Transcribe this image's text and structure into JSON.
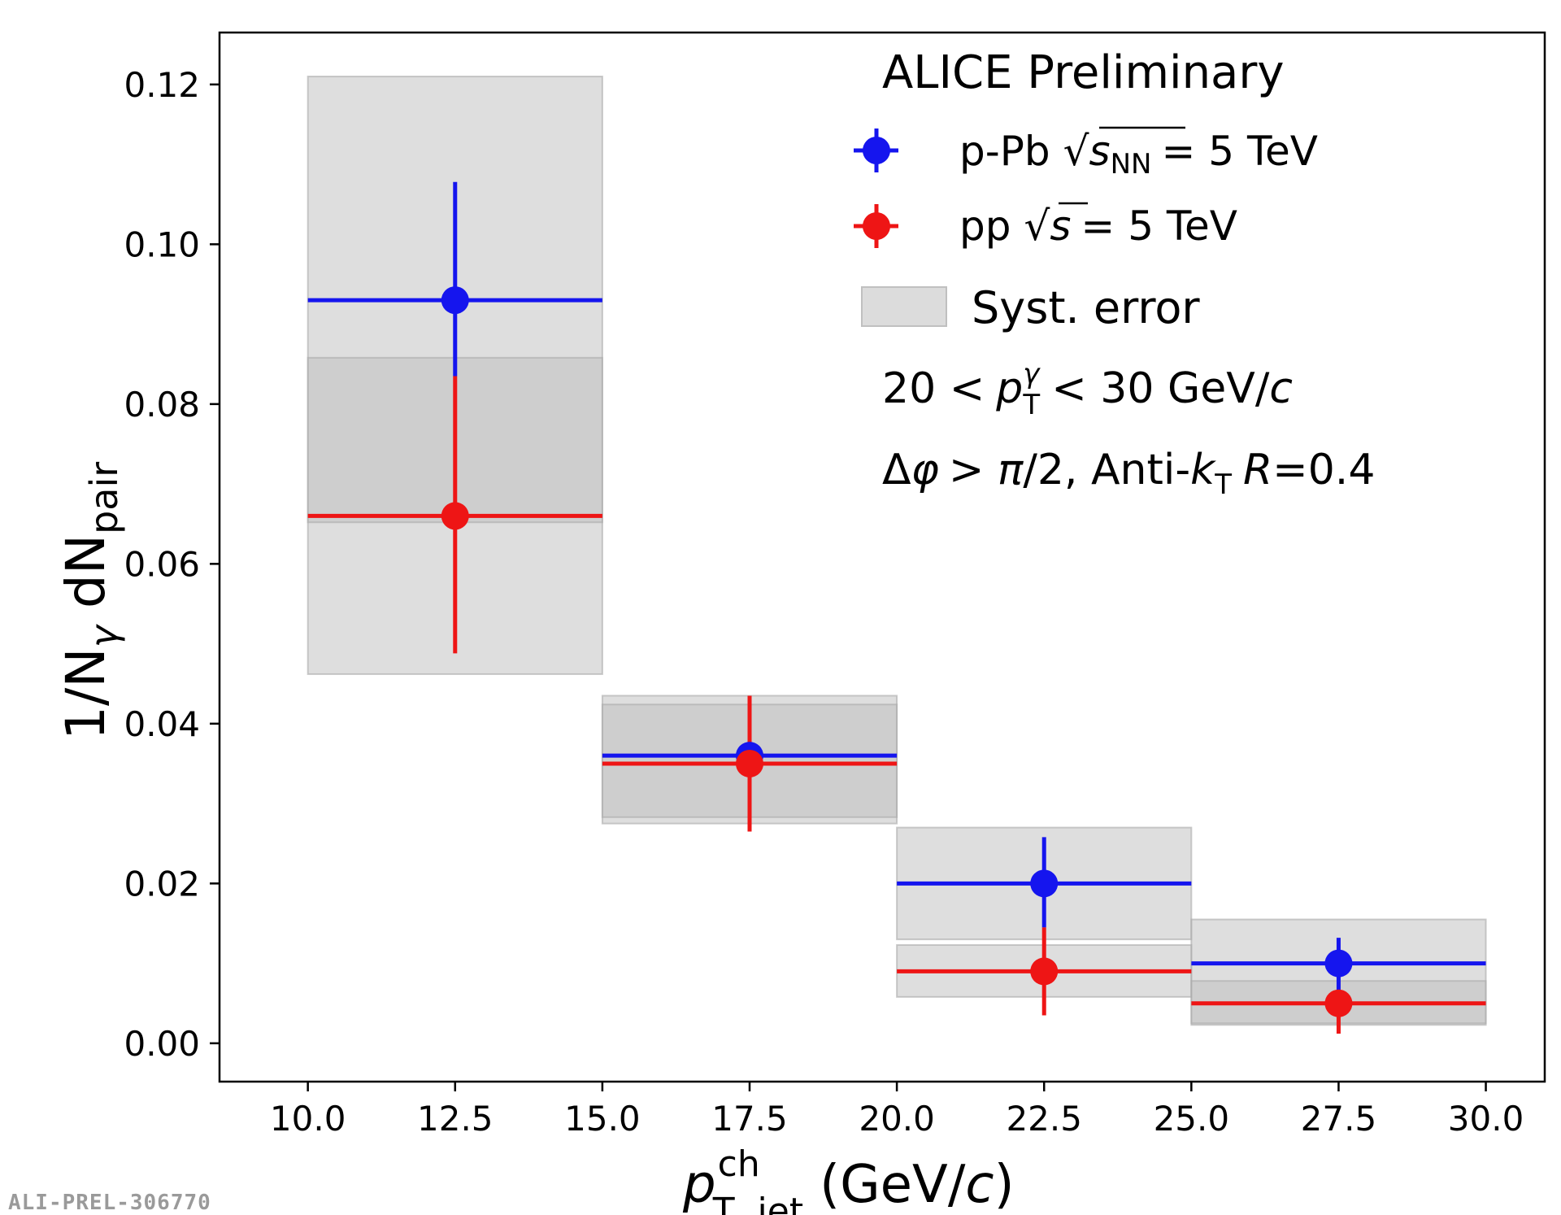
{
  "chart_data": {
    "type": "scatter",
    "title": "ALICE Preliminary",
    "xlabel": "p^ch_T,jet (GeV/c)",
    "ylabel": "1/N_γ dN_pair",
    "xlim": [
      8.5,
      31.0
    ],
    "ylim": [
      -0.0048,
      0.1265
    ],
    "x_ticks": [
      "10.0",
      "12.5",
      "15.0",
      "17.5",
      "20.0",
      "22.5",
      "25.0",
      "27.5",
      "30.0"
    ],
    "y_ticks": [
      "0.00",
      "0.02",
      "0.04",
      "0.06",
      "0.08",
      "0.10",
      "0.12"
    ],
    "series": [
      {
        "name": "p-Pb",
        "color": "#1515ee",
        "points": [
          {
            "x": 12.5,
            "xlo": 10,
            "xhi": 15,
            "y": 0.093,
            "ylo": 0.0835,
            "yhi": 0.1078,
            "syst_lo": 0.0462,
            "syst_hi": 0.121
          },
          {
            "x": 17.5,
            "xlo": 15,
            "xhi": 20,
            "y": 0.036,
            "ylo": 0.0265,
            "yhi": 0.0435,
            "syst_lo": 0.0275,
            "syst_hi": 0.0435
          },
          {
            "x": 22.5,
            "xlo": 20,
            "xhi": 25,
            "y": 0.02,
            "ylo": 0.0145,
            "yhi": 0.0258,
            "syst_lo": 0.013,
            "syst_hi": 0.027
          },
          {
            "x": 27.5,
            "xlo": 25,
            "xhi": 30,
            "y": 0.01,
            "ylo": 0.0065,
            "yhi": 0.0132,
            "syst_lo": 0.0023,
            "syst_hi": 0.0155
          }
        ]
      },
      {
        "name": "pp",
        "color": "#ee1515",
        "points": [
          {
            "x": 12.5,
            "xlo": 10,
            "xhi": 15,
            "y": 0.066,
            "ylo": 0.0488,
            "yhi": 0.0835,
            "syst_lo": 0.0652,
            "syst_hi": 0.0858
          },
          {
            "x": 17.5,
            "xlo": 15,
            "xhi": 20,
            "y": 0.035,
            "ylo": 0.0265,
            "yhi": 0.0435,
            "syst_lo": 0.0283,
            "syst_hi": 0.0424
          },
          {
            "x": 22.5,
            "xlo": 20,
            "xhi": 25,
            "y": 0.009,
            "ylo": 0.0035,
            "yhi": 0.0145,
            "syst_lo": 0.0058,
            "syst_hi": 0.0123
          },
          {
            "x": 27.5,
            "xlo": 25,
            "xhi": 30,
            "y": 0.005,
            "ylo": 0.0012,
            "yhi": 0.0065,
            "syst_lo": 0.0025,
            "syst_hi": 0.0078
          }
        ]
      }
    ],
    "legend": {
      "position": "top-right",
      "ppb_prefix": "p-Pb",
      "ppb_sqrt_var": "s",
      "ppb_sqrt_sub": "NN",
      "ppb_energy": "= 5 TeV",
      "pp_prefix": "pp",
      "pp_sqrt_var": "s",
      "pp_energy": "= 5 TeV",
      "syst_label": "Syst. error"
    },
    "annotations": {
      "cut1_pre": "20 <",
      "cut1_var": "p",
      "cut1_sup": "γ",
      "cut1_sub": "T",
      "cut1_post": "< 30 GeV/",
      "cut1_unit": "c",
      "cut2_pre": "Δ",
      "cut2_phi": "φ",
      "cut2_mid": "> ",
      "cut2_pi": "π",
      "cut2_post": "/2, Anti-",
      "cut2_k": "k",
      "cut2_ksub": "T",
      "cut2_r": "R",
      "cut2_rval": "=0.4"
    },
    "axis_label_parts": {
      "x_var": "p",
      "x_sup": "ch",
      "x_sub": "T, jet",
      "x_unit_open": "(GeV/",
      "x_unit_c": "c",
      "x_unit_close": ")",
      "y_main": "1/N",
      "y_sub1": "γ",
      "y_mid": " dN",
      "y_sub2": "pair"
    },
    "watermark": "ALI-PREL-306770",
    "syst_color": "#c8c8c8"
  }
}
